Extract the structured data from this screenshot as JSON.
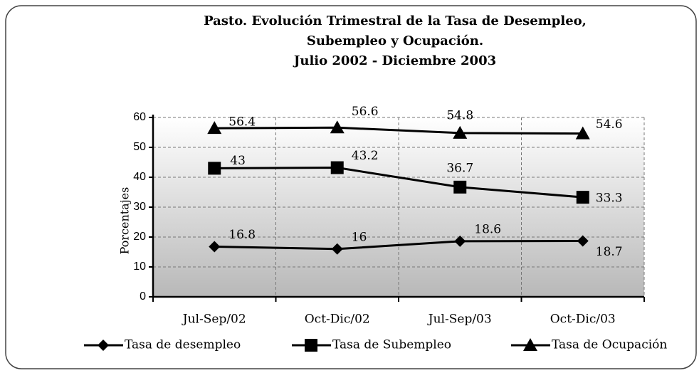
{
  "chart_data": {
    "type": "line",
    "title": [
      "Pasto. Evolución Trimestral de la Tasa de Desempleo,",
      "Subempleo y Ocupación.",
      "Julio 2002 - Diciembre 2003"
    ],
    "y_label": "Porcentajes",
    "categories": [
      "Jul-Sep/02",
      "Oct-Dic/02",
      "Jul-Sep/03",
      "Oct-Dic/03"
    ],
    "series": [
      {
        "name": "Tasa de desempleo",
        "color": "#000000",
        "marker": "diamond",
        "values": [
          16.8,
          16,
          18.6,
          18.7
        ]
      },
      {
        "name": "Tasa de Subempleo",
        "color": "#000000",
        "marker": "square",
        "values": [
          43,
          43.2,
          36.7,
          33.3
        ]
      },
      {
        "name": "Tasa de Ocupación",
        "color": "#000000",
        "marker": "triangle",
        "values": [
          56.4,
          56.6,
          54.8,
          54.6
        ]
      }
    ],
    "ylim": [
      0,
      60
    ],
    "yticks": [
      0,
      10,
      20,
      30,
      40,
      50,
      60
    ],
    "grid": true,
    "legend": "bottom"
  }
}
